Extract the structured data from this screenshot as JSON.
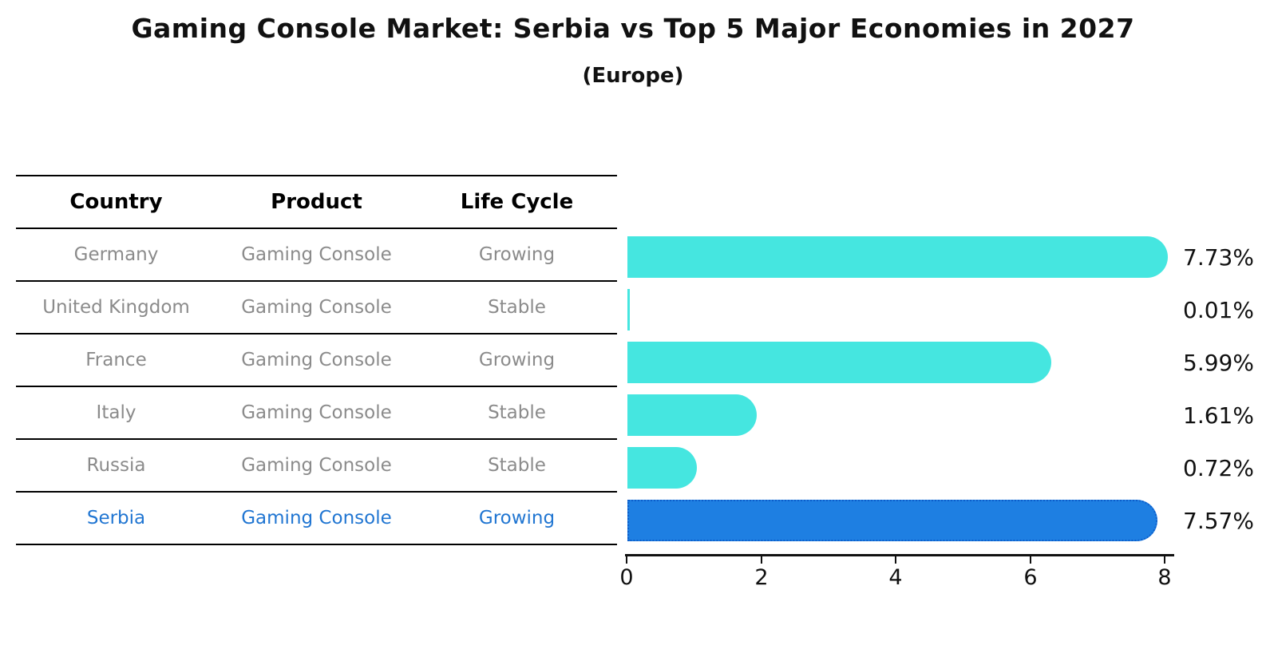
{
  "title": "Gaming Console Market: Serbia vs Top 5 Major Economies in 2027",
  "subtitle": "(Europe)",
  "table": {
    "headers": [
      "Country",
      "Product",
      "Life Cycle"
    ],
    "rows": [
      {
        "country": "Germany",
        "product": "Gaming Console",
        "life_cycle": "Growing",
        "highlight": false
      },
      {
        "country": "United Kingdom",
        "product": "Gaming Console",
        "life_cycle": "Stable",
        "highlight": false
      },
      {
        "country": "France",
        "product": "Gaming Console",
        "life_cycle": "Growing",
        "highlight": false
      },
      {
        "country": "Italy",
        "product": "Gaming Console",
        "life_cycle": "Stable",
        "highlight": false
      },
      {
        "country": "Russia",
        "product": "Gaming Console",
        "life_cycle": "Stable",
        "highlight": false
      },
      {
        "country": "Serbia",
        "product": "Gaming Console",
        "life_cycle": "Growing",
        "highlight": true
      }
    ]
  },
  "chart_data": {
    "type": "bar",
    "orientation": "horizontal",
    "categories": [
      "Germany",
      "United Kingdom",
      "France",
      "Italy",
      "Russia",
      "Serbia"
    ],
    "values": [
      7.73,
      0.01,
      5.99,
      1.61,
      0.72,
      7.57
    ],
    "value_labels": [
      "7.73%",
      "0.01%",
      "5.99%",
      "1.61%",
      "0.72%",
      "7.57%"
    ],
    "x_ticks": [
      "0",
      "2",
      "4",
      "6",
      "8"
    ],
    "x_tick_values": [
      0,
      2,
      4,
      6,
      8
    ],
    "xlim": [
      0,
      8
    ],
    "title": "Gaming Console Market: Serbia vs Top 5 Major Economies in 2027 (Europe)",
    "xlabel": "",
    "ylabel": "",
    "grid": false,
    "legend": null,
    "bar_color": "#45e6e0",
    "highlight_color": "#1e7fe2",
    "highlight_index": 5
  },
  "colors": {
    "bar_cyan": "#45e6e0",
    "bar_blue": "#1e7fe2",
    "highlight_text_blue": "#2176d2",
    "table_text_gray": "#8b8b8b",
    "line_black": "#000000"
  }
}
